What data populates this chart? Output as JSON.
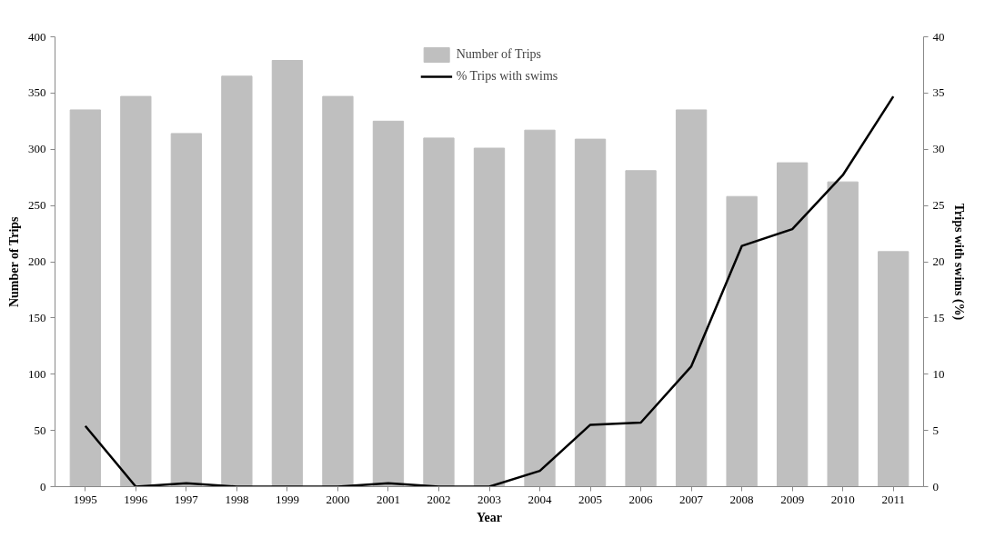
{
  "chart_data": {
    "type": "bar",
    "xlabel": "Year",
    "ylabel": "Number of Trips",
    "y2label": "Trips with swims (%)",
    "categories": [
      "1995",
      "1996",
      "1997",
      "1998",
      "1999",
      "2000",
      "2001",
      "2002",
      "2003",
      "2004",
      "2005",
      "2006",
      "2007",
      "2008",
      "2009",
      "2010",
      "2011"
    ],
    "series": [
      {
        "name": "Number of Trips",
        "color": "#bfbfbf",
        "values": [
          335,
          347,
          314,
          365,
          379,
          347,
          325,
          310,
          301,
          317,
          309,
          281,
          335,
          258,
          288,
          271,
          209
        ]
      },
      {
        "name": "% Trips with swims",
        "color": "#000000",
        "type": "line",
        "axis": "y2",
        "values": [
          5.4,
          0,
          0.3,
          0,
          0,
          0,
          0.3,
          0,
          0,
          1.4,
          5.5,
          5.7,
          10.7,
          21.4,
          22.9,
          27.7,
          34.7
        ]
      }
    ],
    "ylim": [
      0,
      400
    ],
    "yticks": [
      0,
      50,
      100,
      150,
      200,
      250,
      300,
      350,
      400
    ],
    "y2lim": [
      0,
      40
    ],
    "y2ticks": [
      0,
      5,
      10,
      15,
      20,
      25,
      30,
      35,
      40
    ],
    "grid": false,
    "legend": "top",
    "marker": "none",
    "line_style": "solid"
  }
}
